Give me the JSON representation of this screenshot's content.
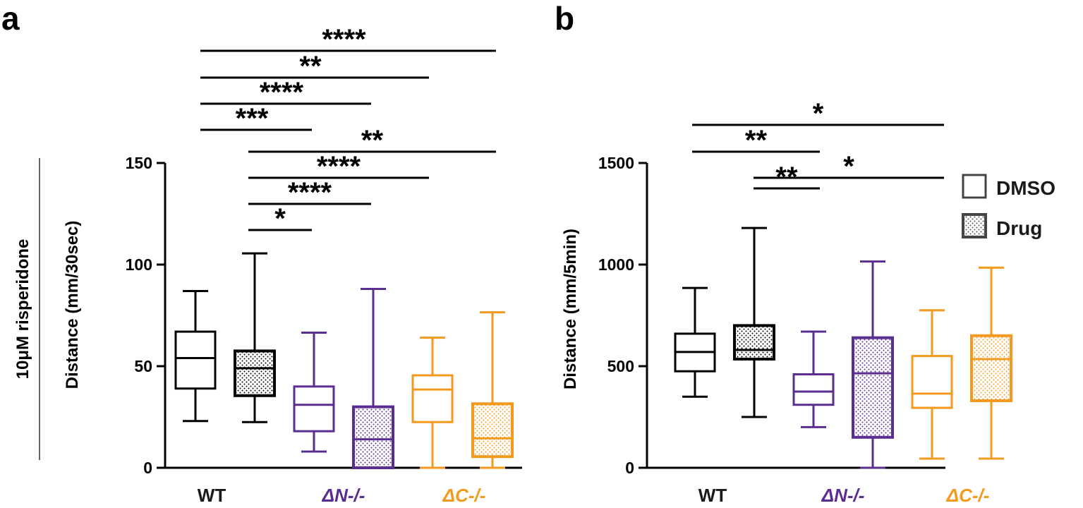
{
  "chart_data": [
    {
      "panel_label": "a",
      "type": "box",
      "side_label": "10μM risperidone",
      "ylabel": "Distance (mm/30sec)",
      "ylim": [
        0,
        150
      ],
      "yticks": [
        "0",
        "50",
        "100",
        "150"
      ],
      "ytick_values": [
        0,
        50,
        100,
        150
      ],
      "groups": [
        {
          "label": "WT",
          "color": "#000000"
        },
        {
          "label": "ΔN-/-",
          "color": "#5a2d91"
        },
        {
          "label": "ΔC-/-",
          "color": "#f39a1e"
        }
      ],
      "boxes": [
        {
          "group": 0,
          "treatment": "DMSO",
          "min": 23,
          "q1": 39,
          "median": 54,
          "q3": 67,
          "max": 87
        },
        {
          "group": 0,
          "treatment": "Drug",
          "min": 22.5,
          "q1": 35.5,
          "median": 49,
          "q3": 57.5,
          "max": 105.5
        },
        {
          "group": 1,
          "treatment": "DMSO",
          "min": 8,
          "q1": 18,
          "median": 31,
          "q3": 40,
          "max": 66.5
        },
        {
          "group": 1,
          "treatment": "Drug",
          "min": 0,
          "q1": 0,
          "median": 14,
          "q3": 30,
          "max": 88
        },
        {
          "group": 2,
          "treatment": "DMSO",
          "min": 0,
          "q1": 22.5,
          "median": 38.5,
          "q3": 45.5,
          "max": 64
        },
        {
          "group": 2,
          "treatment": "Drug",
          "min": 0,
          "q1": 5.5,
          "median": 14.5,
          "q3": 31.5,
          "max": 76.5
        }
      ],
      "significance": [
        {
          "from": 0,
          "to": 5,
          "label": "****"
        },
        {
          "from": 0,
          "to": 4,
          "label": "**"
        },
        {
          "from": 0,
          "to": 3,
          "label": "****"
        },
        {
          "from": 0,
          "to": 2,
          "label": "***"
        },
        {
          "from": 1,
          "to": 5,
          "label": "**"
        },
        {
          "from": 1,
          "to": 4,
          "label": "****"
        },
        {
          "from": 1,
          "to": 3,
          "label": "****"
        },
        {
          "from": 1,
          "to": 2,
          "label": "*"
        }
      ]
    },
    {
      "panel_label": "b",
      "type": "box",
      "ylabel": "Distance (mm/5min)",
      "ylim": [
        0,
        1500
      ],
      "yticks": [
        "0",
        "500",
        "1000",
        "1500"
      ],
      "ytick_values": [
        0,
        500,
        1000,
        1500
      ],
      "groups": [
        {
          "label": "WT",
          "color": "#000000"
        },
        {
          "label": "ΔN-/-",
          "color": "#5a2d91"
        },
        {
          "label": "ΔC-/-",
          "color": "#f39a1e"
        }
      ],
      "boxes": [
        {
          "group": 0,
          "treatment": "DMSO",
          "min": 350,
          "q1": 475,
          "median": 570,
          "q3": 660,
          "max": 885
        },
        {
          "group": 0,
          "treatment": "Drug",
          "min": 250,
          "q1": 535,
          "median": 580,
          "q3": 700,
          "max": 1180
        },
        {
          "group": 1,
          "treatment": "DMSO",
          "min": 200,
          "q1": 310,
          "median": 375,
          "q3": 460,
          "max": 670
        },
        {
          "group": 1,
          "treatment": "Drug",
          "min": 0,
          "q1": 150,
          "median": 465,
          "q3": 640,
          "max": 1015
        },
        {
          "group": 2,
          "treatment": "DMSO",
          "min": 45,
          "q1": 295,
          "median": 365,
          "q3": 550,
          "max": 775
        },
        {
          "group": 2,
          "treatment": "Drug",
          "min": 45,
          "q1": 330,
          "median": 535,
          "q3": 650,
          "max": 985
        }
      ],
      "significance": [
        {
          "from": 0,
          "to": 4,
          "label": "*"
        },
        {
          "from": 0,
          "to": 2,
          "label": "**"
        },
        {
          "from": 1,
          "to": 4,
          "label": "*"
        },
        {
          "from": 1,
          "to": 2,
          "label": "**"
        }
      ],
      "legend": {
        "placement": "top-right",
        "entries": [
          {
            "label": "DMSO",
            "pattern": "open"
          },
          {
            "label": "Drug",
            "pattern": "dotted"
          }
        ]
      }
    }
  ]
}
